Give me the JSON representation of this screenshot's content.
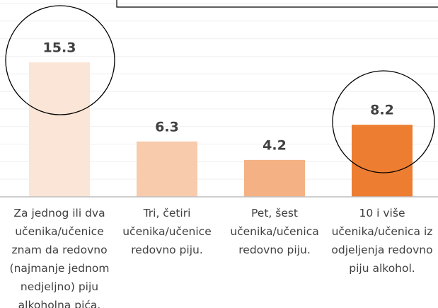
{
  "chart_data": {
    "type": "bar",
    "categories": [
      "Za jednog ili dva\nučenika/učenice\nznam da redovno\n(najmanje jednom\nnedjeljno) piju\nalkoholna pića.",
      "Tri, četiri\nučenika/učenice\nredovno piju.",
      "Pet, šest\nučenika/učenica\nredovno piju.",
      "10 i više\nučenika/učenica iz\nodjeljenja redovno\npiju alkohol."
    ],
    "values": [
      15.3,
      6.3,
      4.2,
      8.2
    ],
    "colors": [
      "#fbe5d6",
      "#f8cbad",
      "#f4b183",
      "#ed7d31"
    ],
    "ylim": [
      0,
      22.4
    ],
    "yticks": [
      0,
      2,
      4,
      6,
      8,
      10,
      12,
      14,
      16,
      18,
      20,
      22
    ],
    "grid": true
  }
}
